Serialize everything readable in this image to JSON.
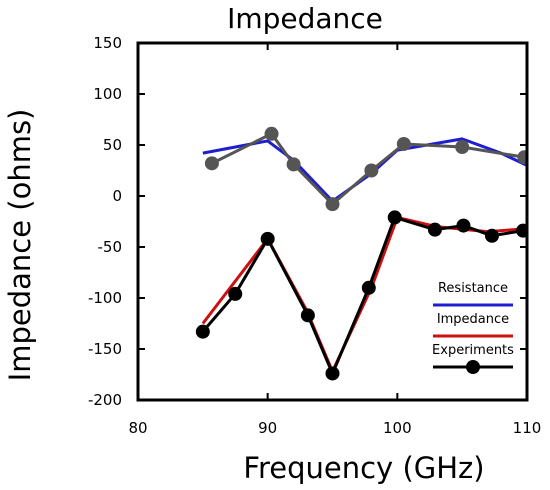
{
  "chart_data": {
    "type": "line",
    "title": "Impedance",
    "xlabel": "Frequency (GHz)",
    "ylabel": "Impedance (ohms)",
    "xlim": [
      80,
      110
    ],
    "ylim": [
      -200,
      150
    ],
    "xticks": [
      80,
      90,
      100,
      110
    ],
    "yticks": [
      150,
      100,
      50,
      0,
      -50,
      -100,
      -150,
      -200
    ],
    "grid": false,
    "legend_position": "lower-right",
    "series": [
      {
        "name": "Resistance",
        "color": "#1f1fd0",
        "markers": false,
        "points": [
          [
            85,
            42
          ],
          [
            90,
            54
          ],
          [
            92,
            35
          ],
          [
            95,
            -5
          ],
          [
            98,
            22
          ],
          [
            100,
            45
          ],
          [
            105,
            56
          ],
          [
            108,
            42
          ],
          [
            110,
            30
          ]
        ]
      },
      {
        "name": "",
        "color": "#555555",
        "markers": true,
        "points": [
          [
            85.7,
            32
          ],
          [
            90.3,
            61
          ],
          [
            92,
            31
          ],
          [
            95,
            -8
          ],
          [
            98,
            25
          ],
          [
            100.5,
            51
          ],
          [
            105,
            48
          ],
          [
            109.8,
            38
          ]
        ]
      },
      {
        "name": "Impedance",
        "color": "#cc1010",
        "markers": false,
        "points": [
          [
            85,
            -125
          ],
          [
            90,
            -42
          ],
          [
            93,
            -112
          ],
          [
            95,
            -172
          ],
          [
            98,
            -90
          ],
          [
            100,
            -21
          ],
          [
            103,
            -30
          ],
          [
            107,
            -35
          ],
          [
            110,
            -32
          ]
        ]
      },
      {
        "name": "Experiments",
        "color": "#000000",
        "markers": true,
        "points": [
          [
            85,
            -133
          ],
          [
            87.5,
            -96
          ],
          [
            90,
            -42
          ],
          [
            93.1,
            -117
          ],
          [
            95,
            -174
          ],
          [
            97.8,
            -90
          ],
          [
            99.8,
            -21
          ],
          [
            102.9,
            -33
          ],
          [
            105.1,
            -29
          ],
          [
            107.3,
            -39
          ],
          [
            109.7,
            -34
          ]
        ]
      }
    ],
    "legend": [
      {
        "label": "Resistance",
        "color": "#1f1fd0",
        "marker": false
      },
      {
        "label": "Impedance",
        "color": "#cc1010",
        "marker": false
      },
      {
        "label": "Experiments",
        "color": "#000000",
        "marker": true
      }
    ]
  }
}
